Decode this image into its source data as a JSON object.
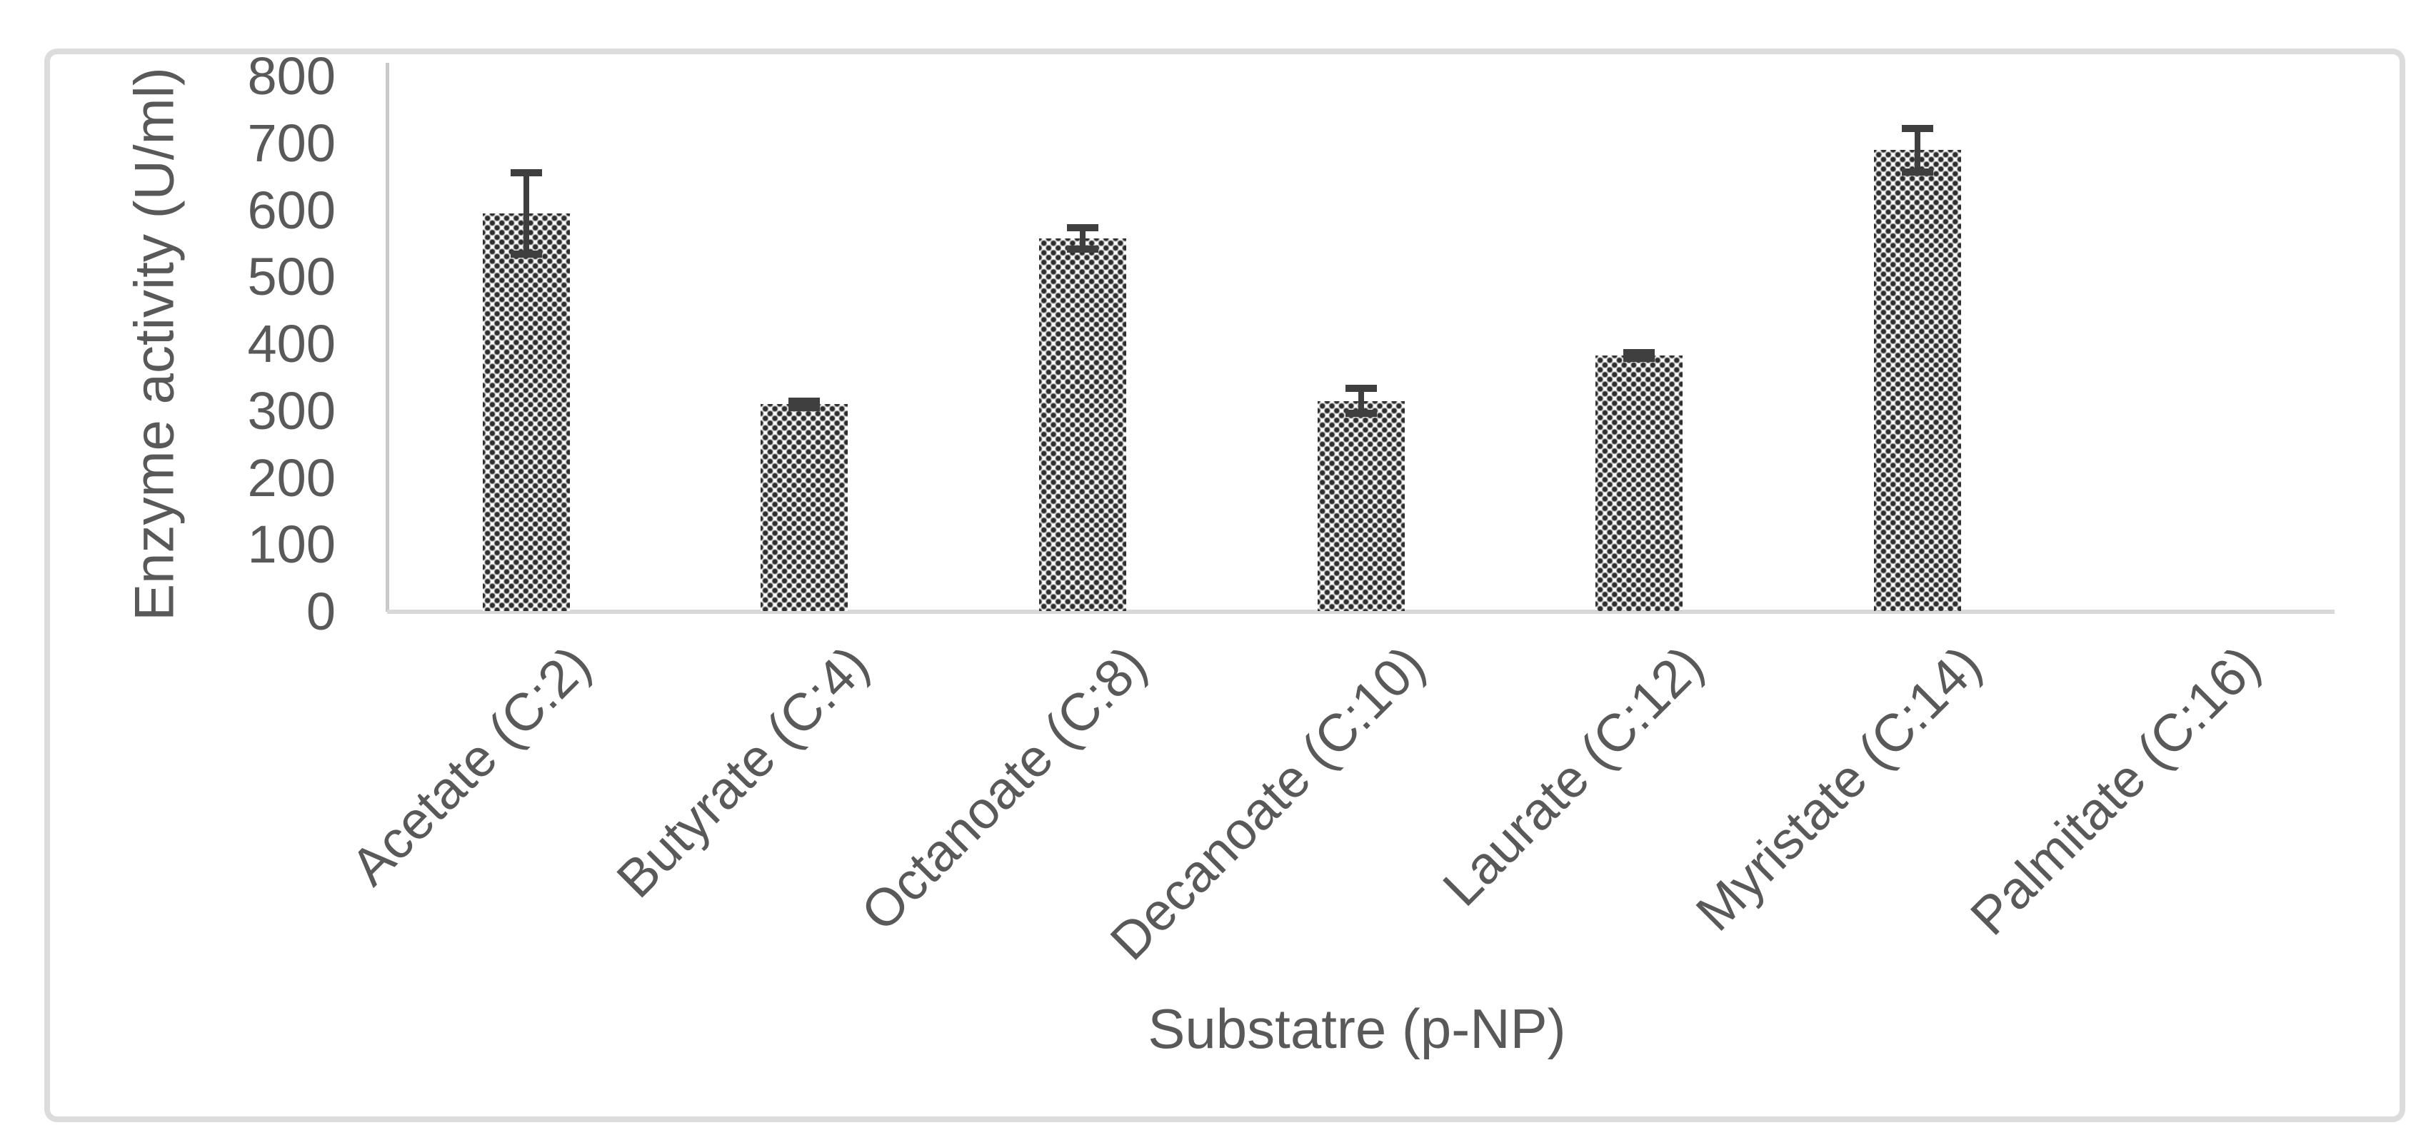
{
  "chart_data": {
    "type": "bar",
    "title": "",
    "xlabel": "Substatre (p-NP)",
    "ylabel": "Enzyme activity (U/ml)",
    "categories": [
      "Acetate (C:2)",
      "Butyrate (C:4)",
      "Octanoate (C:8)",
      "Decanoate (C:10)",
      "Laurate (C:12)",
      "Myristate (C:14)",
      "Palmitate (C:16)"
    ],
    "values": [
      595,
      310,
      558,
      315,
      383,
      690,
      0
    ],
    "error_bars": [
      66,
      10,
      21,
      24,
      10,
      38,
      0
    ],
    "ylim": [
      0,
      800
    ],
    "ytick_step": 100,
    "yticks": [
      800,
      700,
      600,
      500,
      400,
      300,
      200,
      100,
      0
    ],
    "grid": false,
    "legend": false,
    "bar_pattern": "dotted-checkerboard",
    "colors": {
      "bar_dot": "#2e2e2e",
      "bar_bg": "#ededed",
      "error_bar": "#3f3f3f",
      "axis_line": "#c9c9c9",
      "baseline": "#d9d9d9",
      "text": "#595959",
      "frame_border": "#dcdcdc",
      "background": "#ffffff"
    }
  }
}
